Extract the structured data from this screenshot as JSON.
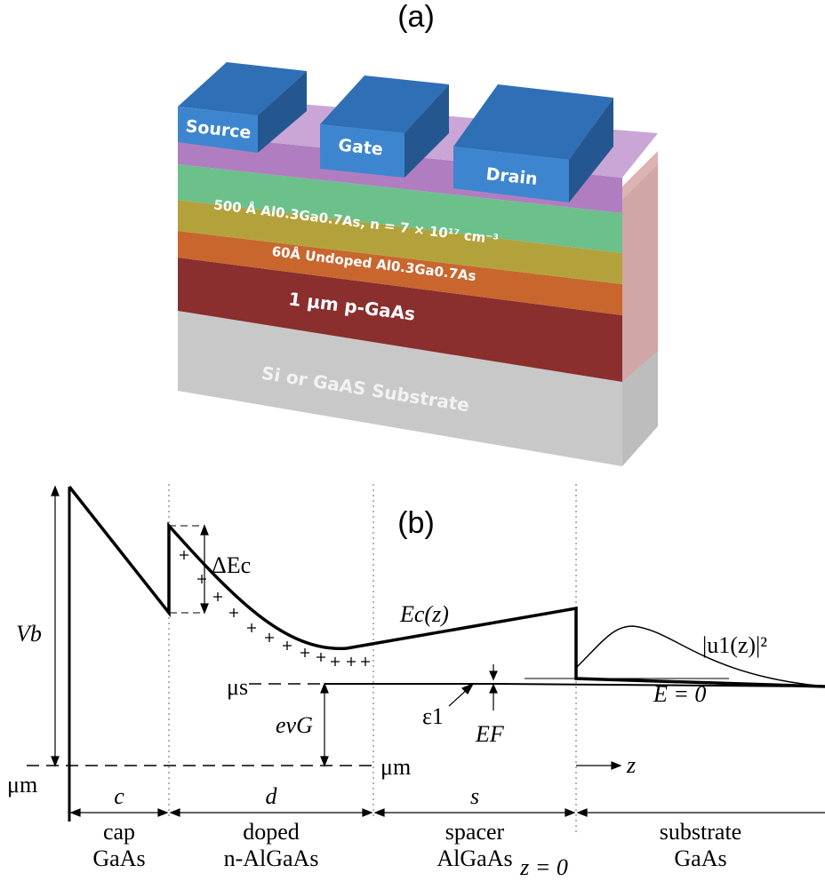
{
  "panel_a": {
    "label": "(a)",
    "electrodes": [
      "Source",
      "Gate",
      "Drain"
    ],
    "layers": [
      "500 Å Al0.3Ga0.7As, n = 7 × 10¹⁷ cm⁻³",
      "60Å Undoped Al0.3Ga0.7As",
      "1 μm p-GaAs",
      "Si or GaAS Substrate"
    ]
  },
  "panel_b": {
    "label": "(b)",
    "labels": {
      "delta_ec": "ΔEc",
      "ec": "Ec(z)",
      "wavefunction": "|u1(z)|²",
      "vb": "Vb",
      "mu_s": "μs",
      "mu_m_left": "μm",
      "mu_m_right": "μm",
      "ev_g": "evG",
      "eps1": "ε1",
      "ef": "EF",
      "e0": "E = 0",
      "z": "z",
      "z0": "z = 0"
    },
    "widths": [
      "c",
      "d",
      "s"
    ],
    "regions": [
      [
        "cap",
        "GaAs"
      ],
      [
        "doped",
        "n-AlGaAs"
      ],
      [
        "spacer",
        "AlGaAs"
      ],
      [
        "substrate",
        "GaAs"
      ]
    ]
  }
}
